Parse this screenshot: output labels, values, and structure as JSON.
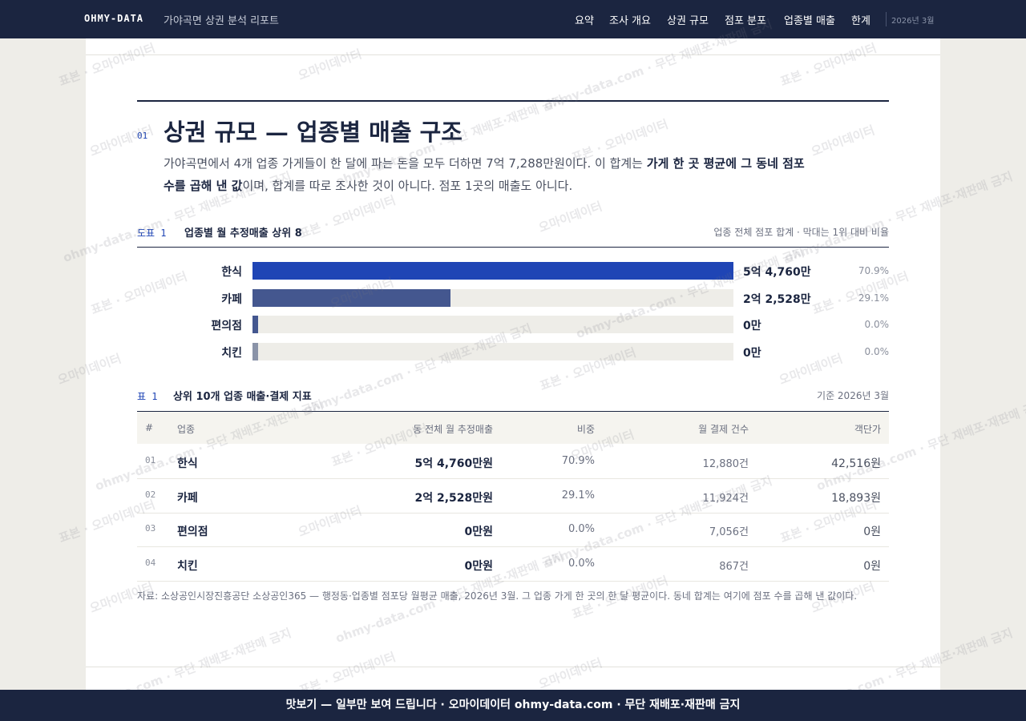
{
  "nav": {
    "logo": "OHMY-DATA",
    "report_title": "가야곡면 상권 분석 리포트",
    "links": [
      "요약",
      "조사 개요",
      "상권 규모",
      "점포 분포",
      "업종별 매출",
      "한계"
    ],
    "date": "2026년 3월"
  },
  "section": {
    "number": "01",
    "title": "상권 규모 — 업종별 매출 구조",
    "paragraph": [
      "가야곡면에서 4개 업종 가게들이 한 달에 파는 돈을 모두 더하면 7억 7,288만원이다. 이 합계는 ",
      "가게 한 곳 평균에 그 동네 점포 수를 곱해 낸 값",
      "이며, 합계를 따로 조사한 것이 아니다. 점포 1곳의 매출도 아니다."
    ]
  },
  "chart_data": {
    "type": "hbar",
    "label": "도표 1",
    "title": "업종별 월 추정매출 상위 8",
    "note": "업종 전체 점포 합계 · 막대는 1위 대비 비율",
    "categories": [
      "한식",
      "카페",
      "편의점",
      "치킨"
    ],
    "values": [
      54760,
      22528,
      0,
      0
    ],
    "value_labels": [
      "5억 4,760만",
      "2억 2,528만",
      "0만",
      "0만"
    ],
    "share_labels": [
      "70.9%",
      "29.1%",
      "0.0%",
      "0.0%"
    ],
    "colors": [
      "#1f45b5",
      "#44578f",
      "#44578f",
      "#8a93a8"
    ]
  },
  "table": {
    "label": "표 1",
    "title": "상위 10개 업종 매출·결제 지표",
    "note": "기준 2026년 3월",
    "headers": [
      "#",
      "업종",
      "동 전체 월 추정매출",
      "비중",
      "월 결제 건수",
      "객단가"
    ],
    "rows": [
      [
        "01",
        "한식",
        "5억 4,760만원",
        "70.9%",
        "12,880건",
        "42,516원"
      ],
      [
        "02",
        "카페",
        "2억 2,528만원",
        "29.1%",
        "11,924건",
        "18,893원"
      ],
      [
        "03",
        "편의점",
        "0만원",
        "0.0%",
        "7,056건",
        "0원"
      ],
      [
        "04",
        "치킨",
        "0만원",
        "0.0%",
        "867건",
        "0원"
      ]
    ],
    "source": "자료: 소상공인시장진흥공단 소상공인365 — 행정동·업종별 점포당 월평균 매출, 2026년 3월. 그 업종 가게 한 곳의 한 달 평균이다. 동네 합계는 여기에 점포 수를 곱해 낸 값이다."
  },
  "watermark": {
    "texts": [
      "표본 · 오마이데이터",
      "오마이데이터",
      "ohmy-data.com · 무단 재배포·재판매 금지"
    ]
  },
  "footer": {
    "text": "맛보기 — 일부만 보여 드립니다 · 오마이데이터 ohmy-data.com · 무단 재배포·재판매 금지"
  }
}
